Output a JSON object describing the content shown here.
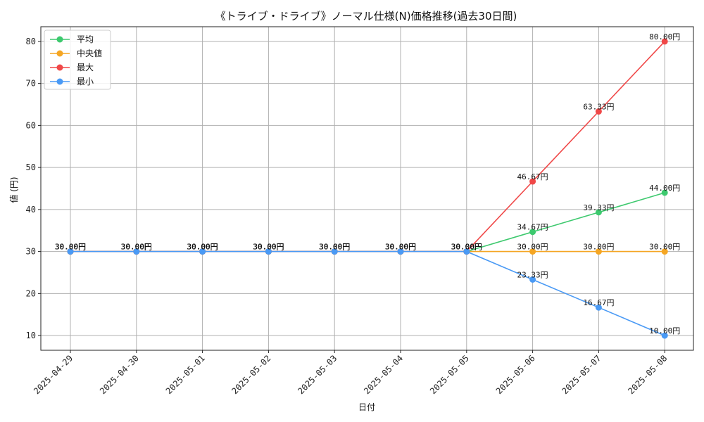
{
  "chart_data": {
    "type": "line",
    "title": "《トライブ・ドライブ》ノーマル仕様(N)価格推移(過去30日間)",
    "xlabel": "日付",
    "ylabel": "値 (円)",
    "categories": [
      "2025-04-29",
      "2025-04-30",
      "2025-05-01",
      "2025-05-02",
      "2025-05-03",
      "2025-05-04",
      "2025-05-05",
      "2025-05-06",
      "2025-05-07",
      "2025-05-08"
    ],
    "ylim": [
      6.5,
      83.5
    ],
    "yticks": [
      10,
      20,
      30,
      40,
      50,
      60,
      70,
      80
    ],
    "grid": true,
    "legend_position": "top-left",
    "label_suffix": "円",
    "series": [
      {
        "name": "平均",
        "color": "#3dc96e",
        "values": [
          30,
          30,
          30,
          30,
          30,
          30,
          30,
          34.67,
          39.33,
          44.0
        ]
      },
      {
        "name": "中央値",
        "color": "#f5a623",
        "values": [
          30,
          30,
          30,
          30,
          30,
          30,
          30,
          30.0,
          30.0,
          30.0
        ]
      },
      {
        "name": "最大",
        "color": "#f04848",
        "values": [
          30,
          30,
          30,
          30,
          30,
          30,
          30,
          46.67,
          63.33,
          80.0
        ]
      },
      {
        "name": "最小",
        "color": "#4a9af5",
        "values": [
          30,
          30,
          30,
          30,
          30,
          30,
          30,
          23.33,
          16.67,
          10.0
        ]
      }
    ]
  }
}
